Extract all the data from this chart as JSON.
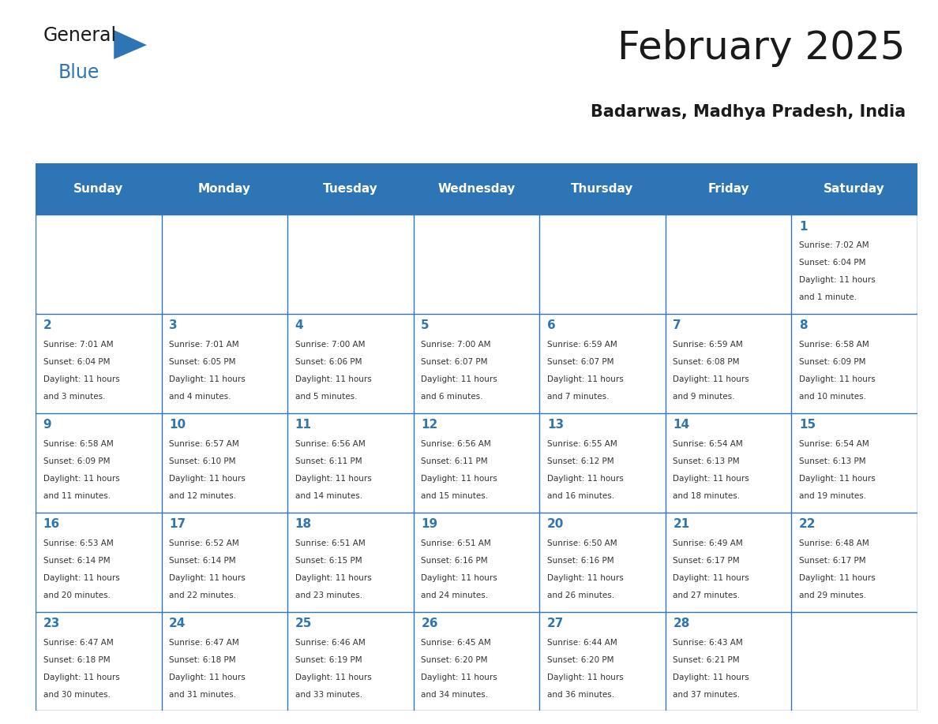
{
  "title": "February 2025",
  "subtitle": "Badarwas, Madhya Pradesh, India",
  "header_bg": "#2E75B6",
  "header_text_color": "#FFFFFF",
  "day_number_color": "#2E75B6",
  "info_text_color": "#333333",
  "grid_color": "#2E75B6",
  "days_of_week": [
    "Sunday",
    "Monday",
    "Tuesday",
    "Wednesday",
    "Thursday",
    "Friday",
    "Saturday"
  ],
  "weeks": [
    [
      {
        "day": null,
        "info": null
      },
      {
        "day": null,
        "info": null
      },
      {
        "day": null,
        "info": null
      },
      {
        "day": null,
        "info": null
      },
      {
        "day": null,
        "info": null
      },
      {
        "day": null,
        "info": null
      },
      {
        "day": "1",
        "info": "Sunrise: 7:02 AM\nSunset: 6:04 PM\nDaylight: 11 hours\nand 1 minute."
      }
    ],
    [
      {
        "day": "2",
        "info": "Sunrise: 7:01 AM\nSunset: 6:04 PM\nDaylight: 11 hours\nand 3 minutes."
      },
      {
        "day": "3",
        "info": "Sunrise: 7:01 AM\nSunset: 6:05 PM\nDaylight: 11 hours\nand 4 minutes."
      },
      {
        "day": "4",
        "info": "Sunrise: 7:00 AM\nSunset: 6:06 PM\nDaylight: 11 hours\nand 5 minutes."
      },
      {
        "day": "5",
        "info": "Sunrise: 7:00 AM\nSunset: 6:07 PM\nDaylight: 11 hours\nand 6 minutes."
      },
      {
        "day": "6",
        "info": "Sunrise: 6:59 AM\nSunset: 6:07 PM\nDaylight: 11 hours\nand 7 minutes."
      },
      {
        "day": "7",
        "info": "Sunrise: 6:59 AM\nSunset: 6:08 PM\nDaylight: 11 hours\nand 9 minutes."
      },
      {
        "day": "8",
        "info": "Sunrise: 6:58 AM\nSunset: 6:09 PM\nDaylight: 11 hours\nand 10 minutes."
      }
    ],
    [
      {
        "day": "9",
        "info": "Sunrise: 6:58 AM\nSunset: 6:09 PM\nDaylight: 11 hours\nand 11 minutes."
      },
      {
        "day": "10",
        "info": "Sunrise: 6:57 AM\nSunset: 6:10 PM\nDaylight: 11 hours\nand 12 minutes."
      },
      {
        "day": "11",
        "info": "Sunrise: 6:56 AM\nSunset: 6:11 PM\nDaylight: 11 hours\nand 14 minutes."
      },
      {
        "day": "12",
        "info": "Sunrise: 6:56 AM\nSunset: 6:11 PM\nDaylight: 11 hours\nand 15 minutes."
      },
      {
        "day": "13",
        "info": "Sunrise: 6:55 AM\nSunset: 6:12 PM\nDaylight: 11 hours\nand 16 minutes."
      },
      {
        "day": "14",
        "info": "Sunrise: 6:54 AM\nSunset: 6:13 PM\nDaylight: 11 hours\nand 18 minutes."
      },
      {
        "day": "15",
        "info": "Sunrise: 6:54 AM\nSunset: 6:13 PM\nDaylight: 11 hours\nand 19 minutes."
      }
    ],
    [
      {
        "day": "16",
        "info": "Sunrise: 6:53 AM\nSunset: 6:14 PM\nDaylight: 11 hours\nand 20 minutes."
      },
      {
        "day": "17",
        "info": "Sunrise: 6:52 AM\nSunset: 6:14 PM\nDaylight: 11 hours\nand 22 minutes."
      },
      {
        "day": "18",
        "info": "Sunrise: 6:51 AM\nSunset: 6:15 PM\nDaylight: 11 hours\nand 23 minutes."
      },
      {
        "day": "19",
        "info": "Sunrise: 6:51 AM\nSunset: 6:16 PM\nDaylight: 11 hours\nand 24 minutes."
      },
      {
        "day": "20",
        "info": "Sunrise: 6:50 AM\nSunset: 6:16 PM\nDaylight: 11 hours\nand 26 minutes."
      },
      {
        "day": "21",
        "info": "Sunrise: 6:49 AM\nSunset: 6:17 PM\nDaylight: 11 hours\nand 27 minutes."
      },
      {
        "day": "22",
        "info": "Sunrise: 6:48 AM\nSunset: 6:17 PM\nDaylight: 11 hours\nand 29 minutes."
      }
    ],
    [
      {
        "day": "23",
        "info": "Sunrise: 6:47 AM\nSunset: 6:18 PM\nDaylight: 11 hours\nand 30 minutes."
      },
      {
        "day": "24",
        "info": "Sunrise: 6:47 AM\nSunset: 6:18 PM\nDaylight: 11 hours\nand 31 minutes."
      },
      {
        "day": "25",
        "info": "Sunrise: 6:46 AM\nSunset: 6:19 PM\nDaylight: 11 hours\nand 33 minutes."
      },
      {
        "day": "26",
        "info": "Sunrise: 6:45 AM\nSunset: 6:20 PM\nDaylight: 11 hours\nand 34 minutes."
      },
      {
        "day": "27",
        "info": "Sunrise: 6:44 AM\nSunset: 6:20 PM\nDaylight: 11 hours\nand 36 minutes."
      },
      {
        "day": "28",
        "info": "Sunrise: 6:43 AM\nSunset: 6:21 PM\nDaylight: 11 hours\nand 37 minutes."
      },
      {
        "day": null,
        "info": null
      }
    ]
  ],
  "logo_general_color": "#1a1a1a",
  "logo_blue_color": "#2E75B6",
  "logo_triangle_color": "#2E75B6",
  "background_color": "#FFFFFF",
  "title_fontsize": 36,
  "subtitle_fontsize": 15,
  "header_fontsize": 11,
  "day_num_fontsize": 11,
  "info_fontsize": 7.5
}
